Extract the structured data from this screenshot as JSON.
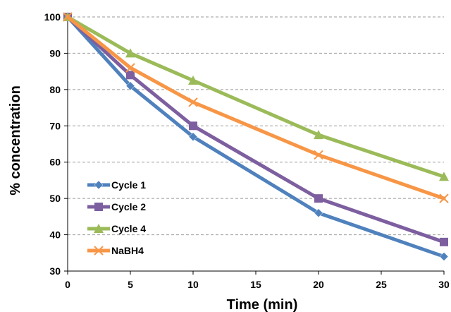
{
  "chart_data": {
    "type": "line",
    "title": "",
    "xlabel": "Time (min)",
    "ylabel": "% concentration",
    "xlim": [
      0,
      30
    ],
    "ylim": [
      30,
      100
    ],
    "x_ticks": [
      "0",
      "5",
      "10",
      "15",
      "20",
      "25",
      "30"
    ],
    "y_ticks": [
      "30",
      "40",
      "50",
      "60",
      "70",
      "80",
      "90",
      "100"
    ],
    "grid": "horizontal dashed",
    "legend_position": "bottom-left",
    "series": [
      {
        "name": "Cycle 1",
        "color": "#4F81BD",
        "marker": "diamond",
        "x": [
          0,
          5,
          10,
          20,
          30
        ],
        "y": [
          100,
          81,
          67,
          46,
          34
        ]
      },
      {
        "name": "Cycle 2",
        "color": "#7D5FA0",
        "marker": "square",
        "x": [
          0,
          5,
          10,
          20,
          30
        ],
        "y": [
          100,
          84,
          70,
          50,
          38
        ]
      },
      {
        "name": "Cycle 4",
        "color": "#9BBB59",
        "marker": "triangle",
        "x": [
          0,
          5,
          10,
          20,
          30
        ],
        "y": [
          100,
          90,
          82.5,
          67.5,
          56
        ]
      },
      {
        "name": "NaBH4",
        "color": "#F79646",
        "marker": "cross",
        "x": [
          0,
          5,
          10,
          20,
          30
        ],
        "y": [
          100,
          86,
          76.5,
          62,
          50
        ]
      }
    ]
  }
}
